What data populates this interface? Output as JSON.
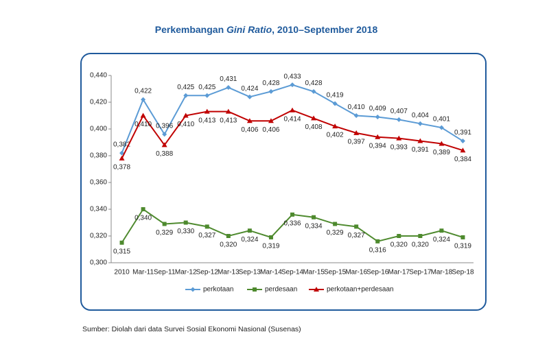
{
  "chart_data": {
    "type": "line",
    "title": [
      "Perkembangan ",
      "Gini Ratio",
      ", 2010–September 2018"
    ],
    "source": "Sumber: Diolah dari data Survei Sosial Ekonomi Nasional (Susenas)",
    "categories": [
      "2010",
      "Mar-11",
      "Sep-11",
      "Mar-12",
      "Sep-12",
      "Mar-13",
      "Sep-13",
      "Mar-14",
      "Sep-14",
      "Mar-15",
      "Sep-15",
      "Mar-16",
      "Sep-16",
      "Mar-17",
      "Sep-17",
      "Mar-18",
      "Sep-18"
    ],
    "series": [
      {
        "name": "perkotaan",
        "color": "#5b9bd5",
        "marker": "diamond",
        "values": [
          0.382,
          0.422,
          0.396,
          0.425,
          0.425,
          0.431,
          0.424,
          0.428,
          0.433,
          0.428,
          0.419,
          0.41,
          0.409,
          0.407,
          0.404,
          0.401,
          0.391
        ],
        "value_labels": [
          "0,382",
          "0,422",
          "0,396",
          "0,425",
          "0,425",
          "0,431",
          "0,424",
          "0,428",
          "0,433",
          "0,428",
          "0,419",
          "0,410",
          "0,409",
          "0,407",
          "0,404",
          "0,401",
          "0,391"
        ]
      },
      {
        "name": "perdesaan",
        "color": "#4e8a2e",
        "marker": "square",
        "values": [
          0.315,
          0.34,
          0.329,
          0.33,
          0.327,
          0.32,
          0.324,
          0.319,
          0.336,
          0.334,
          0.329,
          0.327,
          0.316,
          0.32,
          0.32,
          0.324,
          0.319
        ],
        "value_labels": [
          "0,315",
          "0,340",
          "0,329",
          "0,330",
          "0,327",
          "0,320",
          "0,324",
          "0,319",
          "0,336",
          "0,334",
          "0,329",
          "0,327",
          "0,316",
          "0,320",
          "0,320",
          "0,324",
          "0,319"
        ]
      },
      {
        "name": "perkotaan+perdesaan",
        "color": "#c00000",
        "marker": "triangle",
        "values": [
          0.378,
          0.41,
          0.388,
          0.41,
          0.413,
          0.413,
          0.406,
          0.406,
          0.414,
          0.408,
          0.402,
          0.397,
          0.394,
          0.393,
          0.391,
          0.389,
          0.384
        ],
        "value_labels": [
          "0,378",
          "0,410",
          "0,388",
          "0,410",
          "0,413",
          "0,413",
          "0,406",
          "0,406",
          "0,414",
          "0,408",
          "0,402",
          "0,397",
          "0,394",
          "0,393",
          "0,391",
          "0,389",
          "0,384"
        ]
      }
    ],
    "ylim": [
      0.3,
      0.44
    ],
    "yticks": [
      {
        "value": 0.3,
        "label": "0,300"
      },
      {
        "value": 0.32,
        "label": "0,320"
      },
      {
        "value": 0.34,
        "label": "0,340"
      },
      {
        "value": 0.36,
        "label": "0,360"
      },
      {
        "value": 0.38,
        "label": "0,380"
      },
      {
        "value": 0.4,
        "label": "0,400"
      },
      {
        "value": 0.42,
        "label": "0,420"
      },
      {
        "value": 0.44,
        "label": "0,440"
      }
    ],
    "legend": "bottom"
  }
}
